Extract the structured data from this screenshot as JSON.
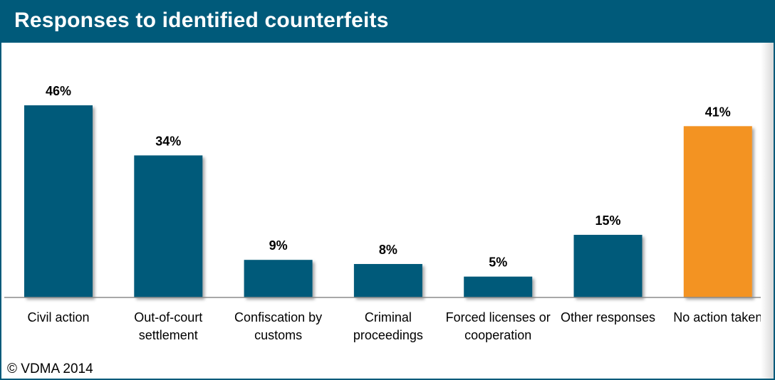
{
  "header": {
    "title": "Responses to identified counterfeits"
  },
  "footer": {
    "copyright": "© VDMA 2014"
  },
  "colors": {
    "header_bg": "#005a7a",
    "bar_default": "#005a7a",
    "bar_highlight": "#f39324"
  },
  "chart_data": {
    "type": "bar",
    "title": "Responses to identified counterfeits",
    "categories": [
      [
        "Civil action"
      ],
      [
        "Out-of-court",
        "settlement"
      ],
      [
        "Confiscation by",
        "customs"
      ],
      [
        "Criminal",
        "proceedings"
      ],
      [
        "Forced licenses or",
        "cooperation"
      ],
      [
        "Other responses"
      ],
      [
        "No action taken"
      ]
    ],
    "values": [
      46,
      34,
      9,
      8,
      5,
      15,
      41
    ],
    "value_labels": [
      "46%",
      "34%",
      "9%",
      "8%",
      "5%",
      "15%",
      "41%"
    ],
    "highlight_index": 6,
    "unit": "%",
    "ylim": [
      0,
      46
    ],
    "grid": false,
    "legend": "none"
  }
}
